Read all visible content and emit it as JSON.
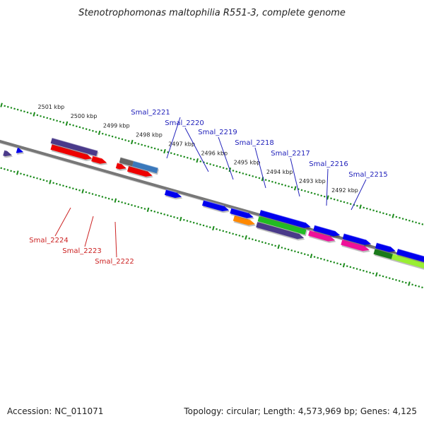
{
  "title": "Stenotrophomonas maltophilia R551-3, complete genome",
  "footer": {
    "accession": "Accession: NC_011071",
    "summary": "Topology: circular; Length: 4,573,969 bp; Genes: 4,125"
  },
  "colors": {
    "backbone": "#777777",
    "tick": "#1a8a1a",
    "forward_label": "#2222bb",
    "reverse_label": "#cc2222"
  },
  "ticks": [
    {
      "kbp": 2501,
      "label": "2501 kbp"
    },
    {
      "kbp": 2500,
      "label": "2500 kbp"
    },
    {
      "kbp": 2499,
      "label": "2499 kbp"
    },
    {
      "kbp": 2498,
      "label": "2498 kbp"
    },
    {
      "kbp": 2497,
      "label": "2497 kbp"
    },
    {
      "kbp": 2496,
      "label": "2496 kbp"
    },
    {
      "kbp": 2495,
      "label": "2495 kbp"
    },
    {
      "kbp": 2494,
      "label": "2494 kbp"
    },
    {
      "kbp": 2493,
      "label": "2493 kbp"
    },
    {
      "kbp": 2492,
      "label": "2492 kbp"
    }
  ],
  "features": [
    {
      "name": "",
      "lane": -1.3,
      "start": 2501.55,
      "end": 2501.3,
      "color": "#4a3a8a",
      "arrow": true
    },
    {
      "name": "",
      "lane": -0.5,
      "start": 2501.2,
      "end": 2501.0,
      "color": "#0000ee",
      "arrow": true
    },
    {
      "name": "",
      "lane": 1.1,
      "start": 2500.25,
      "end": 2499.0,
      "color": "#ee0000",
      "arrow": true
    },
    {
      "name": "",
      "lane": 1.9,
      "start": 2500.3,
      "end": 2498.9,
      "color": "#4a3a8a",
      "arrow": false
    },
    {
      "name": "",
      "lane": 1.1,
      "start": 2499.0,
      "end": 2498.55,
      "color": "#ee0000",
      "arrow": true
    },
    {
      "name": "",
      "lane": 1.1,
      "start": 2498.25,
      "end": 2497.95,
      "color": "#ee0000",
      "arrow": true
    },
    {
      "name": "",
      "lane": 1.1,
      "start": 2497.9,
      "end": 2497.15,
      "color": "#ee0000",
      "arrow": true
    },
    {
      "name": "",
      "lane": 1.9,
      "start": 2498.2,
      "end": 2497.8,
      "color": "#666666",
      "arrow": false
    },
    {
      "name": "",
      "lane": 1.9,
      "start": 2497.8,
      "end": 2497.05,
      "color": "#3a78bb",
      "arrow": false
    },
    {
      "name": "",
      "lane": -0.5,
      "start": 2496.65,
      "end": 2496.15,
      "color": "#0000ee",
      "arrow": true
    },
    {
      "name": "",
      "lane": -0.5,
      "start": 2495.5,
      "end": 2494.7,
      "color": "#0000ee",
      "arrow": true
    },
    {
      "name": "",
      "lane": -1.3,
      "start": 2494.5,
      "end": 2493.85,
      "color": "#ff8800",
      "arrow": true
    },
    {
      "name": "",
      "lane": -0.5,
      "start": 2494.65,
      "end": 2493.95,
      "color": "#0000ee",
      "arrow": true
    },
    {
      "name": "",
      "lane": -1.3,
      "start": 2493.8,
      "end": 2492.35,
      "color": "#4a3a8a",
      "arrow": true
    },
    {
      "name": "",
      "lane": -0.5,
      "start": 2493.8,
      "end": 2492.35,
      "color": "#22bb22",
      "arrow": false
    },
    {
      "name": "",
      "lane": 0.3,
      "start": 2493.8,
      "end": 2492.25,
      "color": "#0000ee",
      "arrow": true
    },
    {
      "name": "",
      "lane": -0.5,
      "start": 2492.25,
      "end": 2491.45,
      "color": "#ee1199",
      "arrow": true
    },
    {
      "name": "",
      "lane": 0.3,
      "start": 2492.15,
      "end": 2491.35,
      "color": "#0000ee",
      "arrow": true
    },
    {
      "name": "",
      "lane": -0.5,
      "start": 2491.25,
      "end": 2490.4,
      "color": "#ee1199",
      "arrow": true
    },
    {
      "name": "",
      "lane": 0.3,
      "start": 2491.25,
      "end": 2490.4,
      "color": "#0000ee",
      "arrow": true
    },
    {
      "name": "",
      "lane": -0.5,
      "start": 2490.25,
      "end": 2489.7,
      "color": "#1a7a1a",
      "arrow": false
    },
    {
      "name": "",
      "lane": -0.5,
      "start": 2489.7,
      "end": 2488.3,
      "color": "#99ee33",
      "arrow": true
    },
    {
      "name": "",
      "lane": 0.3,
      "start": 2490.25,
      "end": 2489.65,
      "color": "#0000ee",
      "arrow": true
    },
    {
      "name": "",
      "lane": 0.3,
      "start": 2489.6,
      "end": 2488.4,
      "color": "#0000ee",
      "arrow": true
    },
    {
      "name": "",
      "lane": 0.3,
      "start": 2488.3,
      "end": 2487.3,
      "color": "#0000ee",
      "arrow": true
    }
  ],
  "gene_labels": [
    {
      "text": "Smal_2221",
      "strand": "forward"
    },
    {
      "text": "Smal_2220",
      "strand": "forward"
    },
    {
      "text": "Smal_2219",
      "strand": "forward"
    },
    {
      "text": "Smal_2218",
      "strand": "forward"
    },
    {
      "text": "Smal_2217",
      "strand": "forward"
    },
    {
      "text": "Smal_2216",
      "strand": "forward"
    },
    {
      "text": "Smal_2215",
      "strand": "forward"
    },
    {
      "text": "Smal_2224",
      "strand": "reverse"
    },
    {
      "text": "Smal_2223",
      "strand": "reverse"
    },
    {
      "text": "Smal_2222",
      "strand": "reverse"
    }
  ]
}
